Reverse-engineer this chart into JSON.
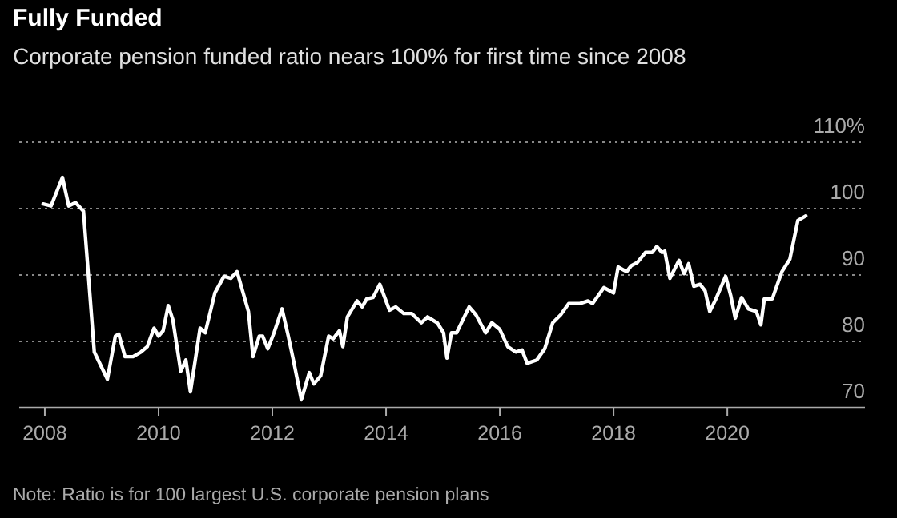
{
  "chart_data": {
    "type": "line",
    "title": "Fully Funded",
    "subtitle": "Corporate pension funded ratio nears 100% for first time since 2008",
    "annotations": [
      "Note: Ratio is for 100 largest U.S. corporate pension plans"
    ],
    "xlim": [
      2007.55,
      2022.42
    ],
    "xticks": [
      2008,
      2010,
      2012,
      2014,
      2016,
      2018,
      2020
    ],
    "ylim": [
      70,
      110
    ],
    "yticks": [
      70,
      80,
      90,
      {
        "value": 110,
        "label": "110%"
      },
      100
    ],
    "grid": "y",
    "marker": "none",
    "line_style": "solid",
    "series": [
      {
        "color": "#ffffff",
        "x": [
          2007.97,
          2008.11,
          2008.31,
          2008.42,
          2008.54,
          2008.68,
          2008.87,
          2009.1,
          2009.24,
          2009.3,
          2009.41,
          2009.55,
          2009.69,
          2009.8,
          2009.92,
          2010.0,
          2010.08,
          2010.17,
          2010.25,
          2010.39,
          2010.48,
          2010.56,
          2010.73,
          2010.82,
          2010.99,
          2011.15,
          2011.27,
          2011.38,
          2011.58,
          2011.66,
          2011.77,
          2011.83,
          2011.92,
          2012.03,
          2012.17,
          2012.28,
          2012.37,
          2012.51,
          2012.65,
          2012.73,
          2012.85,
          2012.99,
          2013.07,
          2013.18,
          2013.24,
          2013.32,
          2013.49,
          2013.58,
          2013.66,
          2013.77,
          2013.89,
          2014.06,
          2014.17,
          2014.31,
          2014.45,
          2014.62,
          2014.73,
          2014.9,
          2015.01,
          2015.07,
          2015.15,
          2015.24,
          2015.46,
          2015.58,
          2015.75,
          2015.86,
          2016.0,
          2016.14,
          2016.28,
          2016.39,
          2016.48,
          2016.65,
          2016.79,
          2016.93,
          2017.07,
          2017.21,
          2017.41,
          2017.55,
          2017.63,
          2017.83,
          2018.0,
          2018.08,
          2018.23,
          2018.31,
          2018.42,
          2018.56,
          2018.68,
          2018.76,
          2018.85,
          2018.9,
          2018.99,
          2019.15,
          2019.24,
          2019.32,
          2019.41,
          2019.52,
          2019.61,
          2019.69,
          2019.8,
          2019.97,
          2020.06,
          2020.14,
          2020.25,
          2020.37,
          2020.51,
          2020.59,
          2020.65,
          2020.79,
          2020.96,
          2021.1,
          2021.24,
          2021.38
        ],
        "values": [
          100.7,
          100.4,
          104.7,
          100.4,
          100.9,
          99.6,
          78.4,
          74.3,
          80.8,
          81.1,
          77.7,
          77.7,
          78.4,
          79.2,
          82.0,
          80.8,
          81.6,
          85.4,
          83.3,
          75.5,
          77.2,
          72.4,
          82.0,
          81.3,
          87.3,
          89.8,
          89.5,
          90.5,
          84.5,
          77.7,
          80.8,
          80.8,
          78.9,
          81.3,
          84.9,
          80.8,
          77.2,
          71.2,
          75.3,
          73.6,
          74.8,
          80.8,
          80.4,
          81.6,
          79.2,
          83.7,
          86.1,
          85.2,
          86.4,
          86.6,
          88.6,
          84.7,
          85.2,
          84.2,
          84.2,
          82.8,
          83.7,
          82.8,
          81.3,
          77.5,
          81.3,
          81.3,
          85.2,
          84.0,
          81.3,
          82.8,
          81.8,
          79.2,
          78.4,
          78.7,
          76.7,
          77.2,
          78.9,
          82.8,
          84.0,
          85.7,
          85.7,
          86.1,
          85.7,
          88.1,
          87.3,
          91.2,
          90.5,
          91.4,
          91.9,
          93.4,
          93.4,
          94.3,
          93.4,
          93.6,
          89.5,
          92.2,
          90.2,
          91.7,
          88.3,
          88.6,
          87.6,
          84.5,
          86.4,
          89.8,
          86.9,
          83.5,
          86.6,
          84.9,
          84.5,
          82.5,
          86.4,
          86.4,
          90.5,
          92.4,
          98.2,
          98.9
        ]
      }
    ]
  }
}
